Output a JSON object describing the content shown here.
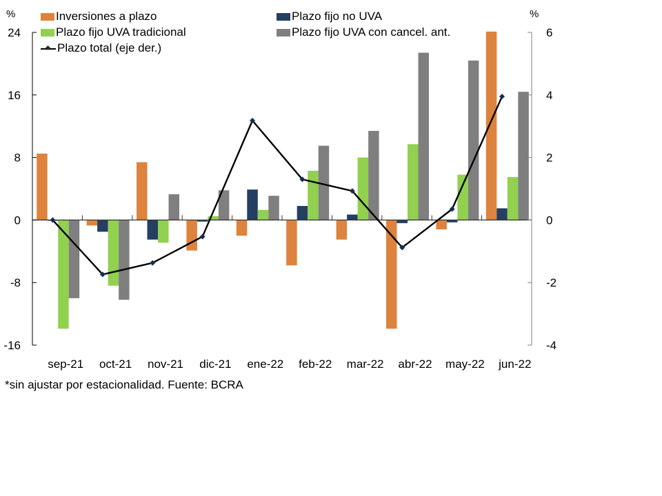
{
  "chart_data": {
    "type": "bar",
    "title": "",
    "categories": [
      "sep-21",
      "oct-21",
      "nov-21",
      "dic-21",
      "ene-22",
      "feb-22",
      "mar-22",
      "abr-22",
      "may-22",
      "jun-22"
    ],
    "series": [
      {
        "name": "Inversiones a plazo",
        "axis": "left",
        "type": "bar",
        "color": "#dd833e",
        "values": [
          8.5,
          -0.7,
          7.4,
          -3.9,
          -2.0,
          -5.8,
          -2.5,
          -13.9,
          -1.2,
          24.1
        ]
      },
      {
        "name": "Plazo fijo no UVA",
        "axis": "left",
        "type": "bar",
        "color": "#243f61",
        "values": [
          -0.1,
          -1.5,
          -2.5,
          -0.2,
          3.9,
          1.8,
          0.7,
          -0.4,
          -0.3,
          1.5
        ]
      },
      {
        "name": "Plazo fijo UVA tradicional",
        "axis": "left",
        "type": "bar",
        "color": "#92d050",
        "values": [
          -13.9,
          -8.4,
          -2.9,
          0.5,
          1.3,
          6.3,
          8.0,
          9.7,
          5.8,
          5.5
        ]
      },
      {
        "name": "Plazo fijo UVA con cancel. ant.",
        "axis": "left",
        "type": "bar",
        "color": "#7f7f7f",
        "values": [
          -10.0,
          -10.2,
          3.3,
          3.8,
          3.1,
          9.5,
          11.4,
          21.4,
          20.4,
          16.4
        ]
      },
      {
        "name": "Plazo total (eje der.)",
        "axis": "right",
        "type": "line",
        "color": "#000000",
        "marker_color": "#1b2a44",
        "values": [
          0.0,
          -1.74,
          -1.37,
          -0.53,
          3.18,
          1.3,
          0.93,
          -0.88,
          0.35,
          3.95
        ]
      }
    ],
    "y_left": {
      "label": "%",
      "ylim": [
        -16,
        24
      ],
      "ticks": [
        24,
        16,
        8,
        0,
        -8,
        -16
      ],
      "tick_labels": [
        "24",
        "16",
        "8",
        "0",
        "-8",
        "-16"
      ]
    },
    "y_right": {
      "label": "%",
      "ylim": [
        -4,
        6
      ],
      "ticks": [
        6,
        4,
        2,
        0,
        -2,
        -4
      ],
      "tick_labels": [
        "6",
        "4",
        "2",
        "0",
        "-2",
        "-4"
      ]
    },
    "xlabel": "",
    "grid": false,
    "legend_position": "top"
  },
  "footnote": "*sin ajustar por estacionalidad. Fuente: BCRA"
}
